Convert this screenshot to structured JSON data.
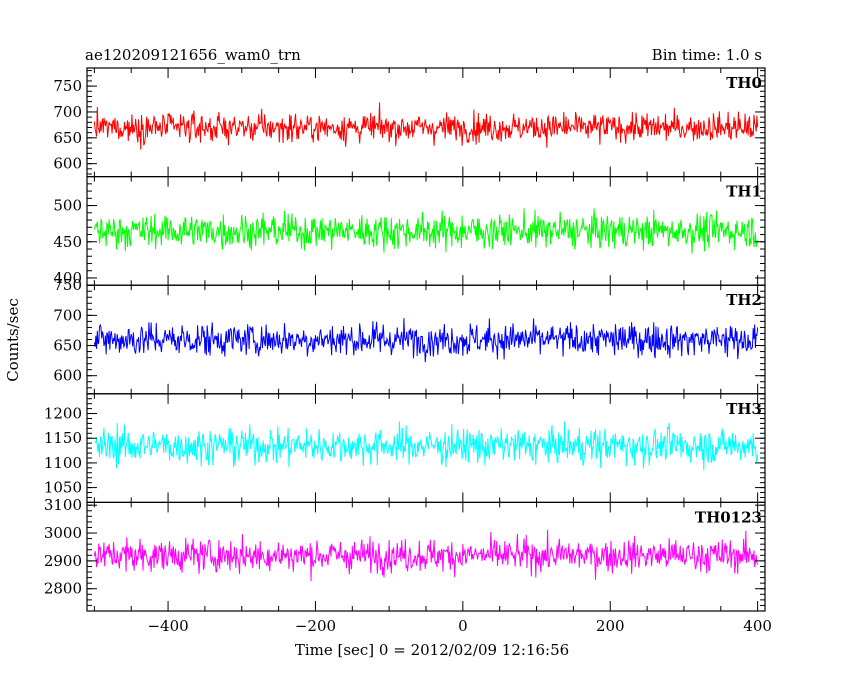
{
  "header": {
    "title": "ae120209121656_wam0_trn",
    "bin_time": "Bin time: 1.0 s"
  },
  "axes": {
    "xlabel": "Time [sec] 0 = 2012/02/09 12:16:56",
    "ylabel": "Counts/sec"
  },
  "chart_data": {
    "type": "line",
    "title": "ae120209121656_wam0_trn",
    "xlabel": "Time [sec] 0 = 2012/02/09 12:16:56",
    "ylabel": "Counts/sec",
    "xlim": [
      -510,
      410
    ],
    "x_ticks": [
      -400,
      -200,
      0,
      200,
      400
    ],
    "x_step": 1.0,
    "x_range_data": [
      -500,
      400
    ],
    "panels": [
      {
        "name": "TH0",
        "color": "#ff0000",
        "ylim": [
          575,
          785
        ],
        "yticks": [
          600,
          650,
          700,
          750
        ],
        "ytick_labels": [
          "600",
          "650",
          "700",
          "750"
        ],
        "mean": 670,
        "noise_sd": 26
      },
      {
        "name": "TH1",
        "color": "#00ff00",
        "ylim": [
          390,
          540
        ],
        "yticks": [
          400,
          450,
          500
        ],
        "ytick_labels": [
          "400",
          "450",
          "500"
        ],
        "mean": 465,
        "noise_sd": 22
      },
      {
        "name": "TH2",
        "color": "#0000ff",
        "ylim": [
          570,
          750
        ],
        "yticks": [
          600,
          650,
          700,
          750
        ],
        "ytick_labels": [
          "600",
          "650",
          "700",
          "750"
        ],
        "mean": 660,
        "noise_sd": 26
      },
      {
        "name": "TH3",
        "color": "#00ffff",
        "ylim": [
          1020,
          1240
        ],
        "yticks": [
          1050,
          1100,
          1150,
          1200
        ],
        "ytick_labels": [
          "1050",
          "1100",
          "1150",
          "1200"
        ],
        "mean": 1135,
        "noise_sd": 34
      },
      {
        "name": "TH0123",
        "color": "#ff00ff",
        "ylim": [
          2720,
          3110
        ],
        "yticks": [
          2800,
          2900,
          3000,
          3100
        ],
        "ytick_labels": [
          "2800",
          "2900",
          "3000",
          "3100"
        ],
        "mean": 2920,
        "noise_sd": 55
      }
    ]
  }
}
